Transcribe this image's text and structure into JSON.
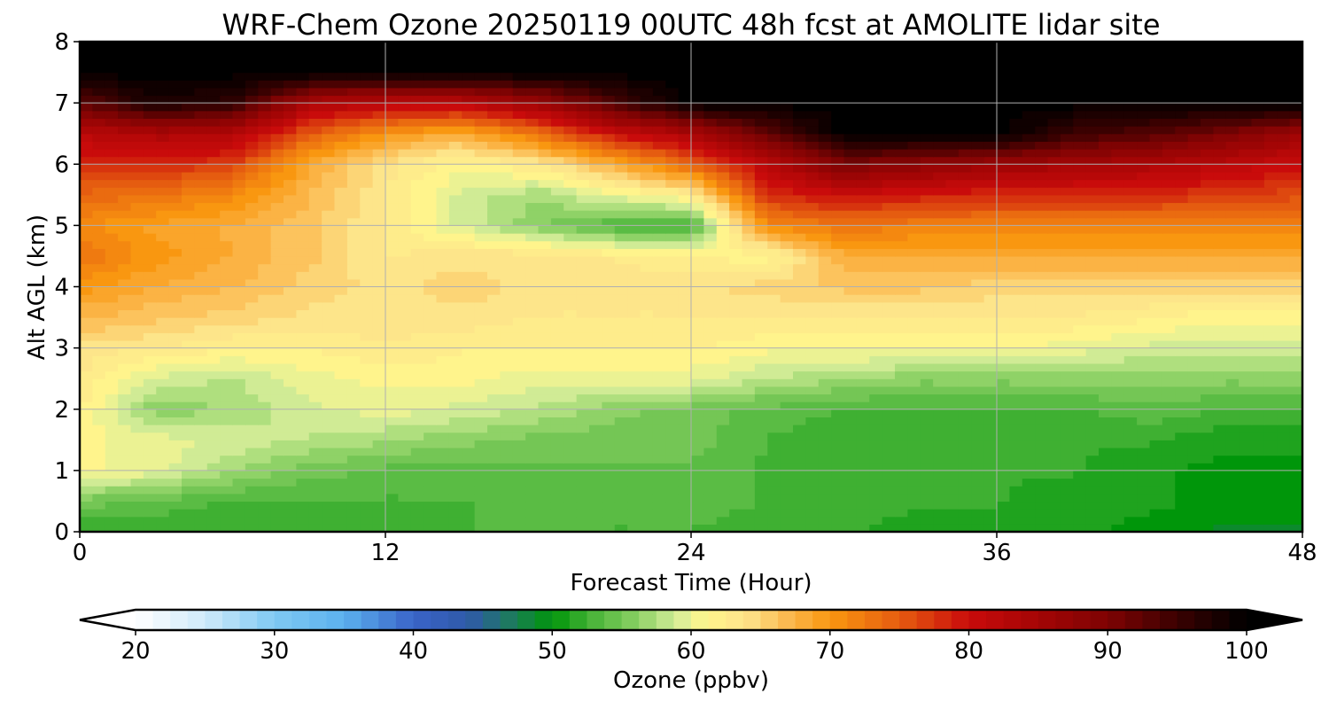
{
  "chart_data": {
    "type": "heatmap",
    "subtype": "filled-contour",
    "title": "WRF-Chem Ozone  20250119 00UTC 48h fcst at AMOLITE lidar site",
    "xlabel": "Forecast Time (Hour)",
    "ylabel": "Alt AGL (km)",
    "xlim": [
      0,
      48
    ],
    "ylim": [
      0,
      8
    ],
    "x_ticks": [
      0,
      12,
      24,
      36,
      48
    ],
    "y_ticks": [
      0,
      1,
      2,
      3,
      4,
      5,
      6,
      7,
      8
    ],
    "grid": true,
    "x_hours": [
      0,
      3,
      6,
      9,
      12,
      15,
      18,
      21,
      24,
      27,
      30,
      33,
      36,
      39,
      42,
      45,
      48
    ],
    "altitudes_km": [
      0,
      0.5,
      1,
      1.5,
      2,
      2.5,
      3,
      3.5,
      4,
      4.5,
      5,
      5.5,
      6,
      6.5,
      7,
      7.5,
      8
    ],
    "ozone_ppbv": [
      [
        52,
        52,
        52,
        53,
        53,
        53,
        54,
        53,
        53,
        52,
        52,
        51,
        51,
        51,
        50,
        49,
        49
      ],
      [
        55,
        54,
        53,
        53,
        53,
        53,
        54,
        54,
        54,
        53,
        53,
        52,
        52,
        51,
        51,
        50,
        50
      ],
      [
        61,
        60,
        57,
        55,
        54,
        54,
        54,
        54,
        54,
        53,
        52,
        52,
        52,
        52,
        51,
        50,
        50
      ],
      [
        61,
        60,
        59,
        58,
        57,
        56,
        55,
        55,
        55,
        53,
        52,
        52,
        52,
        52,
        52,
        51,
        51
      ],
      [
        62,
        56,
        57,
        59,
        60,
        59,
        58,
        56,
        55,
        54,
        53,
        53,
        53,
        53,
        54,
        53,
        53
      ],
      [
        63,
        59,
        58,
        60,
        61,
        61,
        60,
        60,
        60,
        58,
        57,
        56,
        56,
        56,
        56,
        56,
        56
      ],
      [
        64,
        63,
        62,
        62,
        63,
        62,
        62,
        62,
        62,
        61,
        61,
        61,
        61,
        60,
        59,
        59,
        59
      ],
      [
        67,
        66,
        65,
        64,
        64,
        64,
        63,
        63,
        63,
        63,
        63,
        63,
        63,
        63,
        62,
        61,
        61
      ],
      [
        70,
        68,
        67,
        65,
        64,
        65,
        64,
        64,
        64,
        65,
        66,
        66,
        65,
        65,
        65,
        65,
        65
      ],
      [
        73,
        70,
        68,
        66,
        63,
        64,
        64,
        63,
        62,
        61,
        68,
        68,
        68,
        68,
        68,
        68,
        68
      ],
      [
        71,
        69,
        68,
        66,
        63,
        59,
        56,
        53,
        53,
        71,
        73,
        72,
        72,
        72,
        72,
        72,
        72
      ],
      [
        74,
        73,
        71,
        67,
        63,
        59,
        57,
        60,
        62,
        78,
        80,
        79,
        78,
        78,
        78,
        77,
        76
      ],
      [
        78,
        78,
        77,
        68,
        64,
        61,
        63,
        68,
        74,
        82,
        90,
        88,
        86,
        85,
        84,
        82,
        80
      ],
      [
        82,
        84,
        83,
        75,
        70,
        68,
        73,
        80,
        84,
        92,
        100,
        100,
        100,
        95,
        93,
        90,
        86
      ],
      [
        92,
        98,
        96,
        84,
        82,
        82,
        86,
        94,
        100,
        100,
        100,
        100,
        100,
        100,
        100,
        100,
        100
      ],
      [
        100,
        100,
        100,
        100,
        100,
        100,
        100,
        100,
        100,
        100,
        100,
        100,
        100,
        100,
        100,
        100,
        100
      ],
      [
        100,
        100,
        100,
        100,
        100,
        100,
        100,
        100,
        100,
        100,
        100,
        100,
        100,
        100,
        100,
        100,
        100
      ]
    ],
    "colorbar": {
      "label": "Ozone  (ppbv)",
      "min": 20,
      "max": 100,
      "ticks": [
        20,
        30,
        40,
        50,
        60,
        70,
        80,
        90,
        100
      ],
      "extend": "both",
      "orientation": "horizontal",
      "placement": "bottom",
      "color_stops": [
        {
          "value": 20,
          "color": "#ffffff"
        },
        {
          "value": 25,
          "color": "#cfeafa"
        },
        {
          "value": 30,
          "color": "#7fc9f3"
        },
        {
          "value": 35,
          "color": "#5bb1ee"
        },
        {
          "value": 40,
          "color": "#3a63c8"
        },
        {
          "value": 44,
          "color": "#2f5aa8"
        },
        {
          "value": 47,
          "color": "#1d7a5e"
        },
        {
          "value": 50,
          "color": "#00960a"
        },
        {
          "value": 53,
          "color": "#4bb53a"
        },
        {
          "value": 56,
          "color": "#88cf62"
        },
        {
          "value": 59,
          "color": "#d6ee9a"
        },
        {
          "value": 61,
          "color": "#fff58c"
        },
        {
          "value": 64,
          "color": "#fde38a"
        },
        {
          "value": 67,
          "color": "#fbb84e"
        },
        {
          "value": 70,
          "color": "#f99710"
        },
        {
          "value": 75,
          "color": "#e55c10"
        },
        {
          "value": 80,
          "color": "#c90b0b"
        },
        {
          "value": 85,
          "color": "#a40505"
        },
        {
          "value": 90,
          "color": "#7e0303"
        },
        {
          "value": 95,
          "color": "#3a0101"
        },
        {
          "value": 100,
          "color": "#000000"
        }
      ]
    }
  }
}
